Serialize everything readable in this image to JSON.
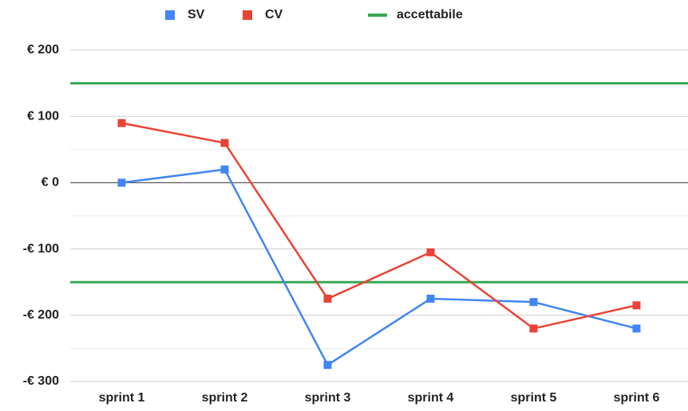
{
  "chart_data": {
    "type": "line",
    "categories": [
      "sprint 1",
      "sprint 2",
      "sprint 3",
      "sprint 4",
      "sprint 5",
      "sprint 6"
    ],
    "series": [
      {
        "name": "SV",
        "color": "#4285f4",
        "values": [
          0,
          20,
          -275,
          -175,
          -180,
          -220
        ]
      },
      {
        "name": "CV",
        "color": "#ea4335",
        "values": [
          90,
          60,
          -175,
          -105,
          -220,
          -185
        ]
      }
    ],
    "reference_lines": {
      "name": "accettabile",
      "color": "#34a853",
      "values": [
        150,
        -150
      ]
    },
    "ylim": [
      -300,
      200
    ],
    "yticks": [
      {
        "value": -300,
        "label": "-€ 300"
      },
      {
        "value": -200,
        "label": "-€ 200"
      },
      {
        "value": -100,
        "label": "-€ 100"
      },
      {
        "value": 0,
        "label": "€ 0"
      },
      {
        "value": 100,
        "label": "€ 100"
      },
      {
        "value": 200,
        "label": "€ 200"
      }
    ],
    "minor_yticks": [
      -250,
      -150,
      -50,
      50,
      150
    ],
    "grid": true,
    "legend": "top"
  }
}
